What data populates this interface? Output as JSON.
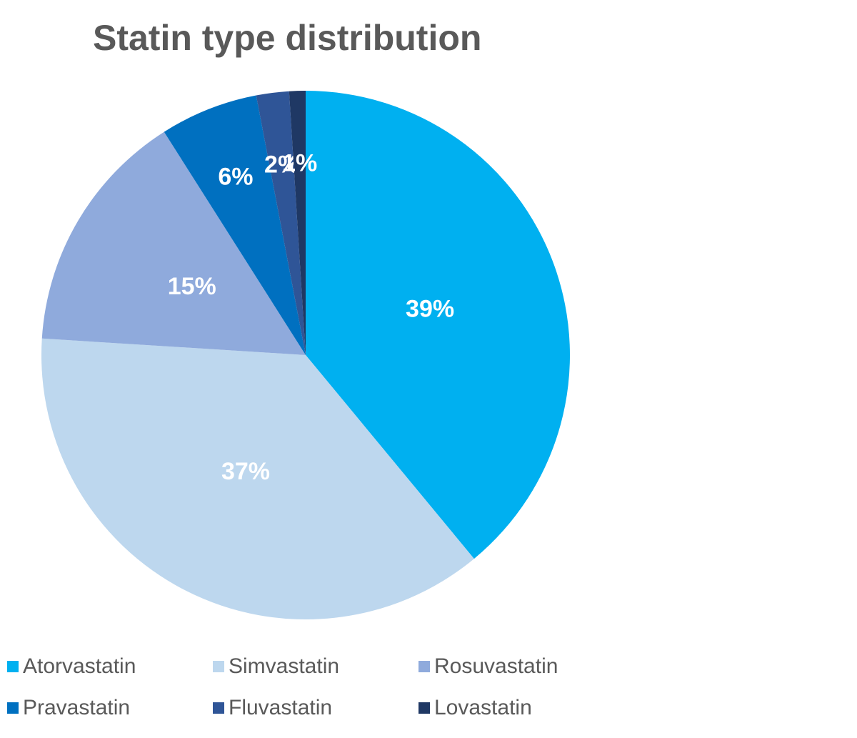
{
  "chart_data": {
    "type": "pie",
    "title": "Statin type distribution",
    "categories": [
      "Atorvastatin",
      "Simvastatin",
      "Rosuvastatin",
      "Pravastatin",
      "Fluvastatin",
      "Lovastatin"
    ],
    "values": [
      39,
      37,
      15,
      6,
      2,
      1
    ],
    "value_labels": [
      "39%",
      "37%",
      "15%",
      "6%",
      "2%",
      "1%"
    ],
    "colors": [
      "#00b0f0",
      "#bdd7ee",
      "#8faadc",
      "#0070c0",
      "#2f5597",
      "#1f3864"
    ],
    "legend": "bottom"
  }
}
